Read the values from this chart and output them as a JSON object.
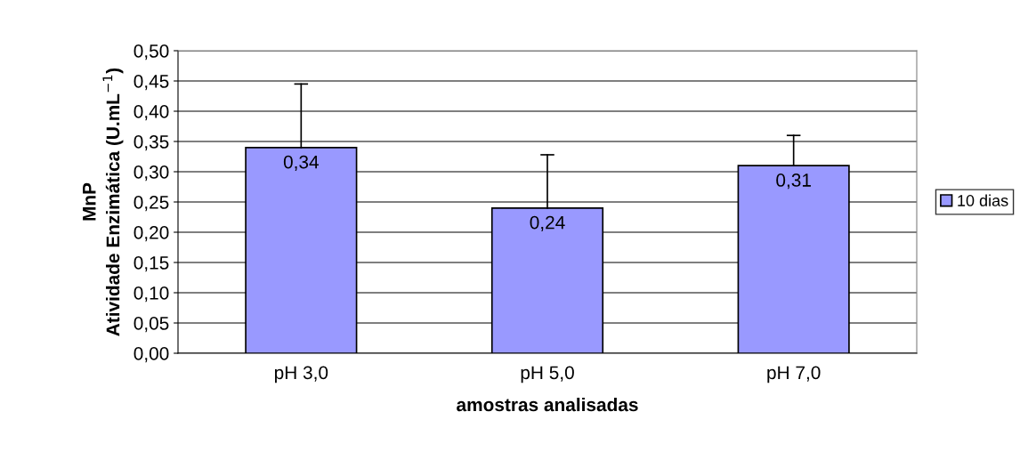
{
  "chart_data": {
    "type": "bar",
    "xlabel": "amostras analisadas",
    "ylabel": "MnP\nAtividade Enzimática (U.mL$^{−1}$)",
    "categories": [
      "pH 3,0",
      "pH 5,0",
      "pH 7,0"
    ],
    "series": [
      {
        "name": "10 dias",
        "color": "#9999ff",
        "values": [
          0.34,
          0.24,
          0.31
        ],
        "value_labels": [
          "0,34",
          "0,24",
          "0,31"
        ],
        "errors": [
          [
            0.34,
            0.445
          ],
          [
            0.24,
            0.328
          ],
          [
            0.31,
            0.36
          ]
        ]
      }
    ],
    "ylim": [
      0,
      0.5
    ],
    "yticks": [
      {
        "value": 0,
        "label": "0,00"
      },
      {
        "value": 0.05,
        "label": "0,05"
      },
      {
        "value": 0.1,
        "label": "0,10"
      },
      {
        "value": 0.15,
        "label": "0,15"
      },
      {
        "value": 0.2,
        "label": "0,20"
      },
      {
        "value": 0.25,
        "label": "0,25"
      },
      {
        "value": 0.3,
        "label": "0,30"
      },
      {
        "value": 0.35,
        "label": "0,35"
      },
      {
        "value": 0.4,
        "label": "0,40"
      },
      {
        "value": 0.45,
        "label": "0,45"
      },
      {
        "value": 0.5,
        "label": "0,50"
      }
    ],
    "grid": "y",
    "legend": "right"
  }
}
